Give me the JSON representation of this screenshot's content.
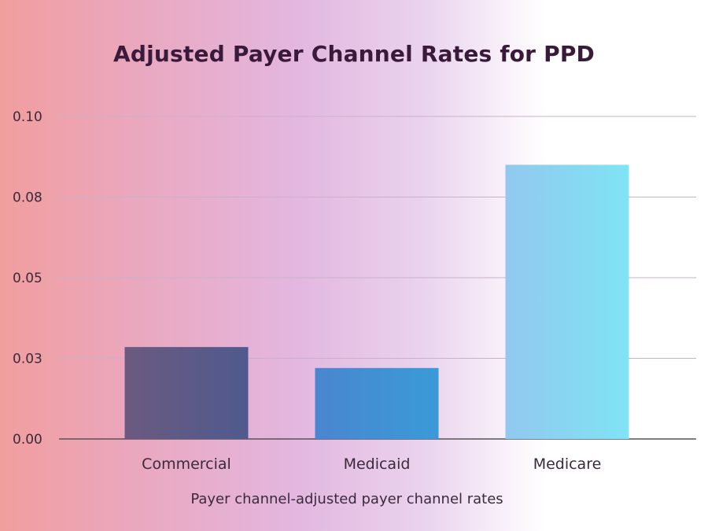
{
  "chart_data": {
    "type": "bar",
    "title": "Adjusted Payer Channel Rates for PPD",
    "xlabel": "Payer channel-adjusted payer channel rates",
    "ylabel": "",
    "categories": [
      "Commercial",
      "Medicaid",
      "Medicare"
    ],
    "values": [
      0.0285,
      0.022,
      0.085
    ],
    "ylim": [
      0,
      0.1
    ],
    "yticks": [
      0,
      0.025,
      0.05,
      0.075,
      0.1
    ],
    "ytick_labels": [
      "0.00",
      "0.03",
      "0.05",
      "0.08",
      "0.10"
    ],
    "grid": true,
    "legend": "none",
    "colors": [
      [
        "#6b5a80",
        "#4f5a8e"
      ],
      [
        "#4a86cf",
        "#3a9ad8"
      ],
      [
        "#92c8ef",
        "#7fe4f4"
      ]
    ],
    "gridline_color": "#c9b2c9",
    "axis_color": "#555555"
  }
}
